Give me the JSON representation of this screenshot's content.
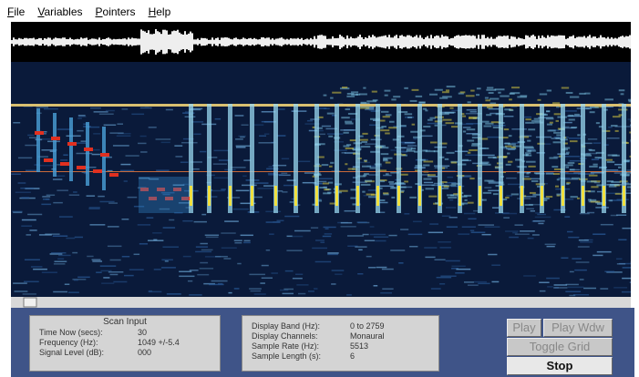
{
  "menu": [
    "File",
    "Variables",
    "Pointers",
    "Help"
  ],
  "scan_input": {
    "title": "Scan Input",
    "rows": [
      [
        "Time Now (secs):",
        "30"
      ],
      [
        "Frequency (Hz):",
        "1049 +/-5.4"
      ],
      [
        "Signal Level (dB):",
        "000"
      ]
    ]
  },
  "display": {
    "rows": [
      [
        "Display Band (Hz):",
        "0 to 2759"
      ],
      [
        "Display Channels:",
        "Monaural"
      ],
      [
        "Sample Rate (Hz):",
        "5513"
      ],
      [
        "Sample Length (s):",
        "6"
      ]
    ]
  },
  "buttons": {
    "play": "Play",
    "play_window": "Play Wdw",
    "toggle_grid": "Toggle Grid",
    "stop": "Stop"
  }
}
